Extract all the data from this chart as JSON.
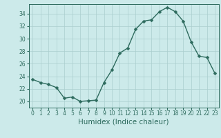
{
  "x": [
    0,
    1,
    2,
    3,
    4,
    5,
    6,
    7,
    8,
    9,
    10,
    11,
    12,
    13,
    14,
    15,
    16,
    17,
    18,
    19,
    20,
    21,
    22,
    23
  ],
  "y": [
    23.5,
    23.0,
    22.7,
    22.2,
    20.5,
    20.7,
    20.0,
    20.1,
    20.2,
    23.0,
    25.0,
    27.7,
    28.5,
    31.5,
    32.8,
    33.0,
    34.3,
    35.0,
    34.3,
    32.8,
    29.5,
    27.2,
    27.0,
    24.5
  ],
  "line_color": "#2e6b5e",
  "marker_color": "#2e6b5e",
  "bg_color": "#cceaea",
  "grid_color": "#aacece",
  "xlabel": "Humidex (Indice chaleur)",
  "xlim": [
    -0.5,
    23.5
  ],
  "ylim": [
    19.0,
    35.5
  ],
  "yticks": [
    20,
    22,
    24,
    26,
    28,
    30,
    32,
    34
  ],
  "xticks": [
    0,
    1,
    2,
    3,
    4,
    5,
    6,
    7,
    8,
    9,
    10,
    11,
    12,
    13,
    14,
    15,
    16,
    17,
    18,
    19,
    20,
    21,
    22,
    23
  ],
  "tick_fontsize": 5.5,
  "label_fontsize": 7.5,
  "line_width": 1.0,
  "marker_size": 2.5
}
